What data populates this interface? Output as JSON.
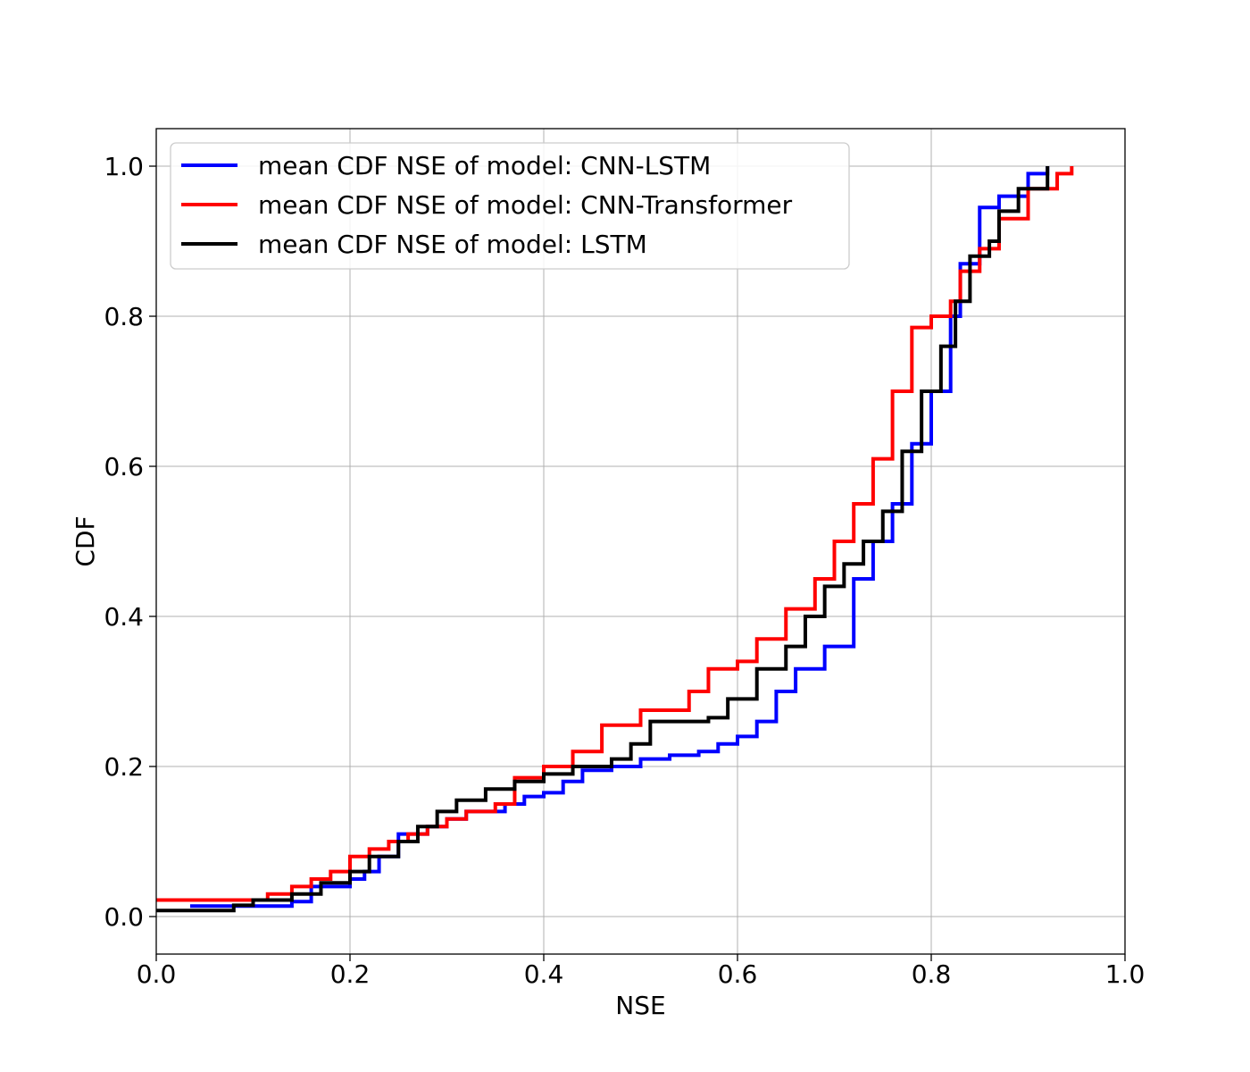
{
  "chart_data": {
    "type": "line",
    "xlabel": "NSE",
    "ylabel": "CDF",
    "xlim": [
      0.0,
      1.0
    ],
    "ylim": [
      -0.05,
      1.05
    ],
    "xticks": [
      0.0,
      0.2,
      0.4,
      0.6,
      0.8,
      1.0
    ],
    "xtick_labels": [
      "0.0",
      "0.2",
      "0.4",
      "0.6",
      "0.8",
      "1.0"
    ],
    "yticks": [
      0.0,
      0.2,
      0.4,
      0.6,
      0.8,
      1.0
    ],
    "ytick_labels": [
      "0.0",
      "0.2",
      "0.4",
      "0.6",
      "0.8",
      "1.0"
    ],
    "grid": true,
    "legend_position": "top-left",
    "series": [
      {
        "name": "mean CDF NSE of model: CNN-LSTM",
        "color": "#0000ff",
        "x": [
          0.035,
          0.14,
          0.16,
          0.2,
          0.215,
          0.23,
          0.25,
          0.28,
          0.3,
          0.32,
          0.36,
          0.38,
          0.4,
          0.42,
          0.44,
          0.47,
          0.5,
          0.53,
          0.56,
          0.58,
          0.6,
          0.62,
          0.64,
          0.66,
          0.69,
          0.72,
          0.74,
          0.76,
          0.78,
          0.8,
          0.82,
          0.83,
          0.85,
          0.87,
          0.9,
          0.92
        ],
        "y": [
          0.014,
          0.02,
          0.04,
          0.05,
          0.06,
          0.08,
          0.11,
          0.12,
          0.13,
          0.14,
          0.15,
          0.16,
          0.165,
          0.18,
          0.195,
          0.2,
          0.21,
          0.215,
          0.22,
          0.23,
          0.24,
          0.26,
          0.3,
          0.33,
          0.36,
          0.45,
          0.5,
          0.55,
          0.63,
          0.7,
          0.8,
          0.87,
          0.945,
          0.96,
          0.99,
          1.0
        ]
      },
      {
        "name": "mean CDF NSE of model: CNN-Transformer",
        "color": "#ff0000",
        "x": [
          0.0,
          0.115,
          0.14,
          0.16,
          0.18,
          0.2,
          0.22,
          0.24,
          0.26,
          0.28,
          0.3,
          0.32,
          0.35,
          0.37,
          0.4,
          0.43,
          0.46,
          0.5,
          0.55,
          0.57,
          0.6,
          0.62,
          0.65,
          0.68,
          0.7,
          0.72,
          0.74,
          0.76,
          0.78,
          0.8,
          0.82,
          0.83,
          0.85,
          0.87,
          0.9,
          0.93,
          0.945
        ],
        "y": [
          0.022,
          0.03,
          0.04,
          0.05,
          0.06,
          0.08,
          0.09,
          0.1,
          0.11,
          0.12,
          0.13,
          0.14,
          0.15,
          0.185,
          0.2,
          0.22,
          0.255,
          0.275,
          0.3,
          0.33,
          0.34,
          0.37,
          0.41,
          0.45,
          0.5,
          0.55,
          0.61,
          0.7,
          0.785,
          0.8,
          0.82,
          0.86,
          0.89,
          0.93,
          0.97,
          0.99,
          1.0
        ]
      },
      {
        "name": "mean CDF NSE of model: LSTM",
        "color": "#000000",
        "x": [
          0.0,
          0.08,
          0.1,
          0.14,
          0.17,
          0.2,
          0.22,
          0.25,
          0.27,
          0.29,
          0.31,
          0.34,
          0.37,
          0.4,
          0.43,
          0.47,
          0.49,
          0.51,
          0.57,
          0.59,
          0.62,
          0.65,
          0.67,
          0.69,
          0.71,
          0.73,
          0.75,
          0.77,
          0.79,
          0.81,
          0.825,
          0.84,
          0.86,
          0.87,
          0.89,
          0.92
        ],
        "y": [
          0.008,
          0.015,
          0.022,
          0.03,
          0.045,
          0.06,
          0.08,
          0.1,
          0.12,
          0.14,
          0.155,
          0.17,
          0.18,
          0.19,
          0.2,
          0.21,
          0.23,
          0.26,
          0.265,
          0.29,
          0.33,
          0.36,
          0.4,
          0.44,
          0.47,
          0.5,
          0.54,
          0.62,
          0.7,
          0.76,
          0.82,
          0.88,
          0.9,
          0.94,
          0.97,
          1.0
        ]
      }
    ]
  }
}
